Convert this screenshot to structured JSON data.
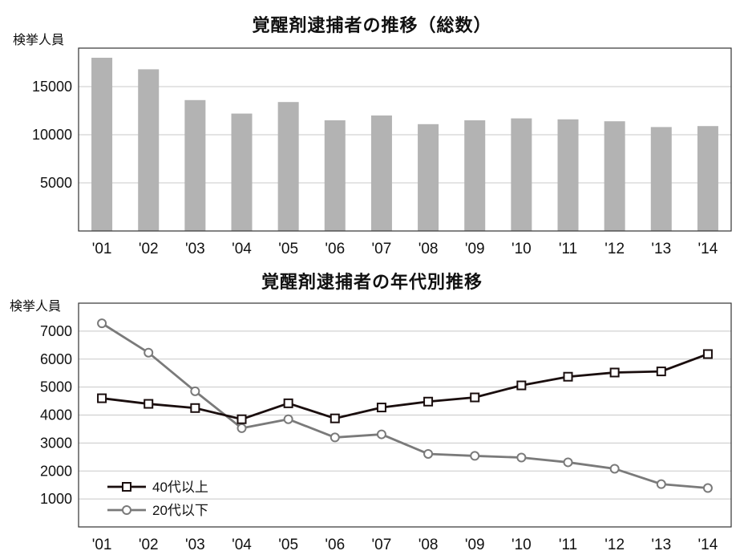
{
  "chart_data": [
    {
      "type": "bar",
      "title": "覚醒剤逮捕者の推移（総数）",
      "ylabel": "検挙人員",
      "categories": [
        "'01",
        "'02",
        "'03",
        "'04",
        "'05",
        "'06",
        "'07",
        "'08",
        "'09",
        "'10",
        "'11",
        "'12",
        "'13",
        "'14"
      ],
      "values": [
        18000,
        16800,
        13600,
        12200,
        13400,
        11500,
        12000,
        11100,
        11500,
        11700,
        11600,
        11400,
        10800,
        10900
      ],
      "yticks": [
        5000,
        10000,
        15000
      ],
      "ylim": [
        0,
        19000
      ],
      "bar_color": "#b3b3b3"
    },
    {
      "type": "line",
      "title": "覚醒剤逮捕者の年代別推移",
      "ylabel": "検挙人員",
      "categories": [
        "'01",
        "'02",
        "'03",
        "'04",
        "'05",
        "'06",
        "'07",
        "'08",
        "'09",
        "'10",
        "'11",
        "'12",
        "'13",
        "'14"
      ],
      "series": [
        {
          "name": "40代以上",
          "marker": "square",
          "color": "#1a0e0e",
          "values": [
            4600,
            4400,
            4250,
            3850,
            4420,
            3880,
            4270,
            4480,
            4630,
            5060,
            5370,
            5520,
            5560,
            6180
          ]
        },
        {
          "name": "20代以下",
          "marker": "circle",
          "color": "#7a7a7a",
          "values": [
            7280,
            6230,
            4850,
            3530,
            3850,
            3200,
            3310,
            2610,
            2540,
            2480,
            2310,
            2080,
            1530,
            1390
          ]
        }
      ],
      "yticks": [
        1000,
        2000,
        3000,
        4000,
        5000,
        6000,
        7000
      ],
      "ylim": [
        0,
        8000
      ],
      "legend": "bottom-left"
    }
  ]
}
